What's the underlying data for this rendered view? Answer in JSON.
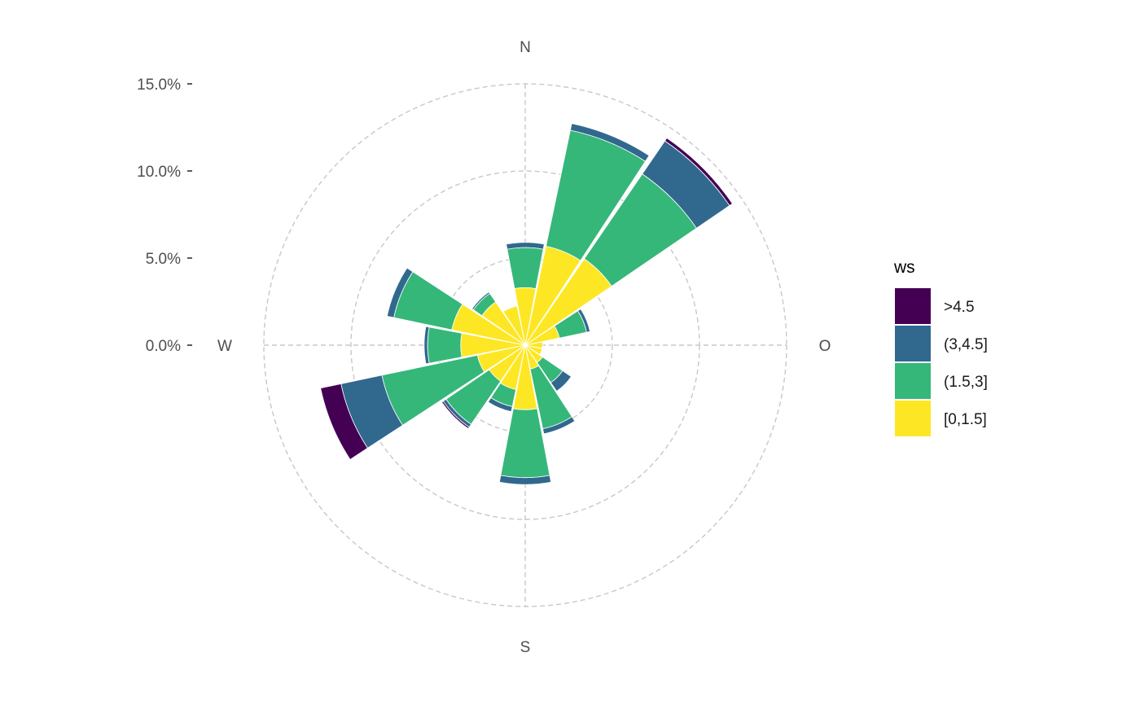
{
  "chart_data": {
    "type": "windrose",
    "title": "",
    "radial_axis": {
      "ticks": [
        0,
        5,
        10,
        15
      ],
      "tick_labels": [
        "0.0%",
        "5.0%",
        "10.0%",
        "15.0%"
      ],
      "limit": [
        0,
        15
      ]
    },
    "direction_labels": [
      "N",
      "O",
      "S",
      "W"
    ],
    "directions_deg": [
      0,
      22.5,
      45,
      67.5,
      90,
      112.5,
      135,
      157.5,
      180,
      202.5,
      225,
      247.5,
      270,
      292.5,
      315,
      337.5
    ],
    "legend": {
      "title": "ws",
      "position": "right"
    },
    "series": [
      {
        "name": "[0,1.5]",
        "color": "#FDE725",
        "values": [
          3.3,
          5.8,
          6.0,
          2.0,
          1.0,
          1.0,
          1.2,
          1.4,
          3.7,
          2.6,
          2.5,
          2.8,
          3.7,
          4.3,
          3.0,
          2.3
        ]
      },
      {
        "name": "(1.5,3]",
        "color": "#35B779",
        "values": [
          5.6,
          12.6,
          11.9,
          3.6,
          0.6,
          0.3,
          2.6,
          4.9,
          7.6,
          3.6,
          5.5,
          8.4,
          5.6,
          7.7,
          3.6,
          1.5
        ]
      },
      {
        "name": "(3,4.5]",
        "color": "#31688E",
        "values": [
          5.9,
          13.0,
          14.2,
          3.8,
          0.7,
          0.4,
          3.2,
          5.2,
          8.0,
          3.9,
          5.7,
          10.8,
          5.8,
          8.1,
          3.7,
          1.6
        ]
      },
      {
        "name": ">4.5",
        "color": "#440154",
        "values": [
          5.9,
          13.0,
          14.4,
          3.8,
          0.7,
          0.4,
          3.2,
          5.2,
          8.0,
          3.9,
          5.8,
          12.0,
          5.8,
          8.1,
          3.7,
          1.6
        ]
      }
    ]
  }
}
